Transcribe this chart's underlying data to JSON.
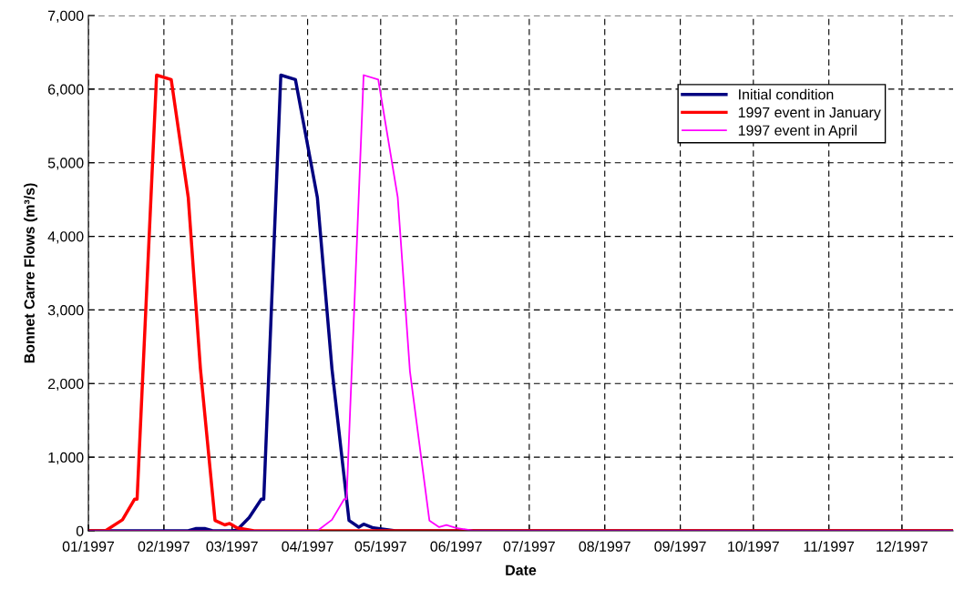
{
  "chart_data": {
    "type": "line",
    "xlabel": "Date",
    "ylabel": "Bonnet Carre Flows (m³/s)",
    "xlim": [
      "1997-01-01",
      "1997-12-22"
    ],
    "xticks": [
      {
        "value": "1997-01-01",
        "label": "01/1997"
      },
      {
        "value": "1997-02-01",
        "label": "02/1997"
      },
      {
        "value": "1997-03-01",
        "label": "03/1997"
      },
      {
        "value": "1997-04-01",
        "label": "04/1997"
      },
      {
        "value": "1997-05-01",
        "label": "05/1997"
      },
      {
        "value": "1997-06-01",
        "label": "06/1997"
      },
      {
        "value": "1997-07-01",
        "label": "07/1997"
      },
      {
        "value": "1997-08-01",
        "label": "08/1997"
      },
      {
        "value": "1997-09-01",
        "label": "09/1997"
      },
      {
        "value": "1997-10-01",
        "label": "10/1997"
      },
      {
        "value": "1997-11-01",
        "label": "11/1997"
      },
      {
        "value": "1997-12-01",
        "label": "12/1997"
      }
    ],
    "ylim": [
      0,
      7000
    ],
    "yticks": [
      0,
      {
        "value": 1000,
        "label": "1,000"
      },
      {
        "value": 2000,
        "label": "2,000"
      },
      {
        "value": 3000,
        "label": "3,000"
      },
      {
        "value": 4000,
        "label": "4,000"
      },
      {
        "value": 5000,
        "label": "5,000"
      },
      {
        "value": 6000,
        "label": "6,000"
      },
      {
        "value": 7000,
        "label": "7,000"
      }
    ],
    "grid": true,
    "legend": "top right",
    "marker": "none",
    "line_style": "solid",
    "series": [
      {
        "name": "Initial condition",
        "color": "#000080",
        "x": [
          "1997-01-01",
          "1997-02-11",
          "1997-02-14",
          "1997-02-18",
          "1997-02-21",
          "1997-03-01",
          "1997-03-03",
          "1997-03-08",
          "1997-03-13",
          "1997-03-14",
          "1997-03-21",
          "1997-03-27",
          "1997-04-05",
          "1997-04-11",
          "1997-04-18",
          "1997-04-22",
          "1997-04-24",
          "1997-04-28",
          "1997-05-07",
          "1997-12-22"
        ],
        "values": [
          0,
          0,
          30,
          30,
          0,
          0,
          10,
          180,
          430,
          430,
          6190,
          6130,
          4530,
          2200,
          140,
          50,
          90,
          40,
          0,
          0
        ]
      },
      {
        "name": "1997 event in January",
        "color": "#ff0000",
        "x": [
          "1997-01-01",
          "1997-01-08",
          "1997-01-15",
          "1997-01-20",
          "1997-01-21",
          "1997-01-29",
          "1997-02-04",
          "1997-02-11",
          "1997-02-16",
          "1997-02-22",
          "1997-02-26",
          "1997-02-28",
          "1997-03-03",
          "1997-03-10",
          "1997-12-22"
        ],
        "values": [
          0,
          0,
          150,
          430,
          430,
          6190,
          6130,
          4530,
          2200,
          140,
          80,
          100,
          40,
          0,
          0
        ]
      },
      {
        "name": "1997 event in April",
        "color": "#ff00ff",
        "x": [
          "1997-01-01",
          "1997-04-05",
          "1997-04-11",
          "1997-04-16",
          "1997-04-17",
          "1997-04-24",
          "1997-04-30",
          "1997-05-08",
          "1997-05-13",
          "1997-05-21",
          "1997-05-25",
          "1997-05-28",
          "1997-06-01",
          "1997-06-08",
          "1997-12-22"
        ],
        "values": [
          0,
          0,
          150,
          430,
          430,
          6190,
          6130,
          4530,
          2170,
          140,
          50,
          80,
          40,
          0,
          0
        ]
      }
    ]
  }
}
